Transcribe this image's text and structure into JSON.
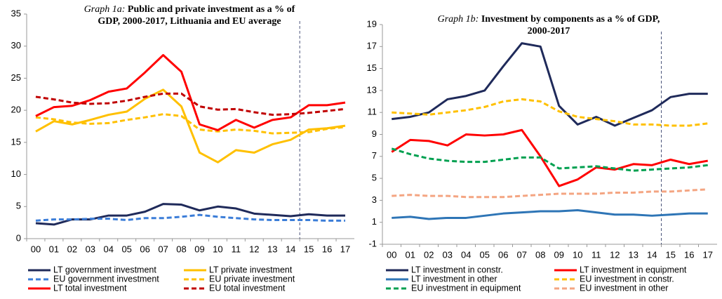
{
  "chart_data": [
    {
      "type": "line",
      "title_prefix": "Graph 1a:",
      "title": [
        "Public and private investment as a % of",
        "GDP, 2000-2017, Lithuania and EU average"
      ],
      "categories": [
        "00",
        "01",
        "02",
        "03",
        "04",
        "05",
        "06",
        "07",
        "08",
        "09",
        "10",
        "11",
        "12",
        "13",
        "14",
        "15",
        "16",
        "17"
      ],
      "ylim": [
        0,
        35
      ],
      "yticks": [
        0,
        5,
        10,
        15,
        20,
        25,
        30,
        35
      ],
      "divider_after": "14",
      "series": [
        {
          "name": "LT government investment",
          "color": "#1f2a5a",
          "dashed": false,
          "values": [
            2.4,
            2.2,
            3.0,
            3.0,
            3.6,
            3.6,
            4.2,
            5.4,
            5.3,
            4.4,
            5.0,
            4.7,
            3.9,
            3.7,
            3.5,
            3.8,
            3.6,
            3.6
          ]
        },
        {
          "name": "LT private investment",
          "color": "#ffc000",
          "dashed": false,
          "values": [
            16.7,
            18.3,
            17.8,
            18.5,
            19.3,
            19.8,
            21.8,
            23.2,
            20.6,
            13.4,
            11.9,
            13.8,
            13.4,
            14.7,
            15.4,
            17.0,
            17.2,
            17.6
          ]
        },
        {
          "name": "EU government investment",
          "color": "#3b7dd8",
          "dashed": true,
          "values": [
            2.8,
            3.0,
            3.0,
            3.1,
            3.1,
            2.9,
            3.2,
            3.2,
            3.4,
            3.7,
            3.4,
            3.2,
            3.0,
            2.9,
            2.9,
            2.9,
            2.8,
            2.8
          ]
        },
        {
          "name": "EU private investment",
          "color": "#ffc000",
          "dashed": true,
          "values": [
            18.9,
            18.6,
            18.1,
            17.9,
            18.0,
            18.5,
            18.9,
            19.4,
            19.1,
            17.0,
            16.7,
            17.0,
            16.8,
            16.4,
            16.5,
            16.6,
            17.1,
            17.4
          ]
        },
        {
          "name": "LT total investment",
          "color": "#ff0000",
          "dashed": false,
          "values": [
            19.1,
            20.5,
            20.7,
            21.6,
            22.9,
            23.4,
            25.9,
            28.6,
            26.0,
            17.8,
            16.9,
            18.5,
            17.3,
            18.5,
            18.9,
            20.8,
            20.8,
            21.2
          ]
        },
        {
          "name": "EU total investment",
          "color": "#c00000",
          "dashed": true,
          "values": [
            22.1,
            21.7,
            21.2,
            21.0,
            21.1,
            21.5,
            22.1,
            22.6,
            22.6,
            20.6,
            20.1,
            20.2,
            19.7,
            19.3,
            19.4,
            19.6,
            19.9,
            20.2
          ]
        }
      ]
    },
    {
      "type": "line",
      "title_prefix": "Graph 1b:",
      "title": [
        "Investment by components as a % of GDP,",
        "2000-2017"
      ],
      "categories": [
        "00",
        "01",
        "02",
        "03",
        "04",
        "05",
        "06",
        "07",
        "08",
        "09",
        "10",
        "11",
        "12",
        "13",
        "14",
        "15",
        "16",
        "17"
      ],
      "ylim": [
        -1,
        19
      ],
      "yticks": [
        -1,
        1,
        3,
        5,
        7,
        9,
        11,
        13,
        15,
        17,
        19
      ],
      "divider_after": "14",
      "series": [
        {
          "name": "LT investment in constr.",
          "color": "#1f2a5a",
          "dashed": false,
          "values": [
            10.4,
            10.6,
            11.0,
            12.2,
            12.5,
            13.0,
            15.2,
            17.3,
            17.0,
            11.6,
            9.9,
            10.6,
            9.8,
            10.5,
            11.2,
            12.4,
            12.7,
            12.7
          ]
        },
        {
          "name": "LT investment in equipment",
          "color": "#ff0000",
          "dashed": false,
          "values": [
            7.4,
            8.5,
            8.4,
            8.0,
            9.0,
            8.9,
            9.0,
            9.4,
            7.0,
            4.3,
            4.9,
            6.0,
            5.8,
            6.3,
            6.2,
            6.7,
            6.3,
            6.6
          ]
        },
        {
          "name": "LT investment in other",
          "color": "#2e75b6",
          "dashed": false,
          "values": [
            1.4,
            1.5,
            1.3,
            1.4,
            1.4,
            1.6,
            1.8,
            1.9,
            2.0,
            2.0,
            2.1,
            1.9,
            1.7,
            1.7,
            1.6,
            1.7,
            1.8,
            1.8
          ]
        },
        {
          "name": "EU investment in constr.",
          "color": "#ffc000",
          "dashed": true,
          "values": [
            11.0,
            10.9,
            10.8,
            11.0,
            11.2,
            11.5,
            12.0,
            12.2,
            12.0,
            11.1,
            10.6,
            10.4,
            10.2,
            9.9,
            9.9,
            9.8,
            9.8,
            10.0
          ]
        },
        {
          "name": "EU investment in equipment",
          "color": "#00a050",
          "dashed": true,
          "values": [
            7.7,
            7.2,
            6.8,
            6.6,
            6.5,
            6.5,
            6.7,
            6.9,
            6.9,
            5.9,
            6.0,
            6.1,
            5.9,
            5.7,
            5.8,
            5.9,
            6.0,
            6.2
          ]
        },
        {
          "name": "EU investment in other",
          "color": "#f4a582",
          "dashed": true,
          "values": [
            3.4,
            3.5,
            3.4,
            3.4,
            3.3,
            3.3,
            3.3,
            3.4,
            3.5,
            3.6,
            3.6,
            3.6,
            3.7,
            3.7,
            3.8,
            3.8,
            3.9,
            4.0
          ]
        }
      ]
    }
  ]
}
